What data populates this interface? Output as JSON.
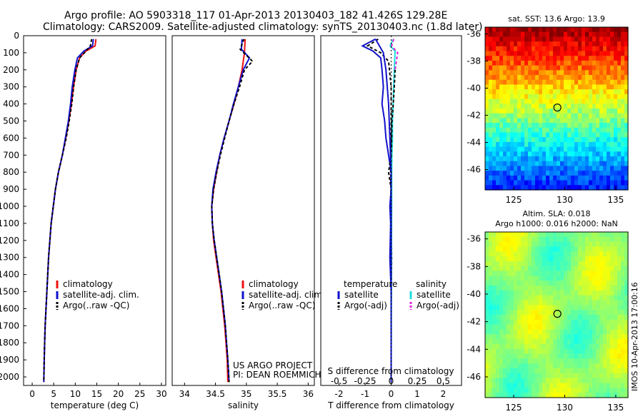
{
  "header": {
    "line1": "Argo profile: AO 5903318_117 01-Apr-2013 20130403_182 41.426S 129.28E",
    "line2": "Climatology: CARS2009. Satellite-adjusted climatology: synTS_20130403.nc (1.8d later)"
  },
  "side_label": "IMOS 10-Apr-2013 17:00:16",
  "colors": {
    "climatology": "#ee1111",
    "satellite": "#1111cc",
    "argo": "#000000",
    "sal_satellite": "#22dddd",
    "sal_argo": "#dd22dd"
  },
  "chart_data": [
    {
      "type": "line",
      "xlabel": "temperature (deg C)",
      "xlim": [
        -2,
        31
      ],
      "xticks": [
        "0",
        "5",
        "10",
        "15",
        "20",
        "25",
        "30"
      ],
      "ylim": [
        0,
        2050
      ],
      "yticks": [
        "0",
        "100",
        "200",
        "300",
        "400",
        "500",
        "600",
        "700",
        "800",
        "900",
        "1000",
        "1100",
        "1200",
        "1300",
        "1400",
        "1500",
        "1600",
        "1700",
        "1800",
        "1900",
        "2000"
      ],
      "legend": [
        "climatology",
        "satellite-adj. clim.",
        "Argo(..raw -QC)"
      ],
      "series": [
        {
          "name": "climatology",
          "color": "#ee1111",
          "dash": "",
          "points": [
            [
              14.8,
              20
            ],
            [
              14.6,
              60
            ],
            [
              12.5,
              90
            ],
            [
              11,
              130
            ],
            [
              10.2,
              200
            ],
            [
              9.6,
              300
            ],
            [
              9.1,
              400
            ],
            [
              8.5,
              500
            ],
            [
              7.8,
              600
            ],
            [
              7,
              700
            ],
            [
              6.1,
              800
            ],
            [
              5.4,
              900
            ],
            [
              4.9,
              1000
            ],
            [
              4.4,
              1100
            ],
            [
              4.1,
              1200
            ],
            [
              3.8,
              1300
            ],
            [
              3.6,
              1400
            ],
            [
              3.4,
              1500
            ],
            [
              3.2,
              1600
            ],
            [
              3,
              1700
            ],
            [
              2.9,
              1800
            ],
            [
              2.8,
              1900
            ],
            [
              2.7,
              2030
            ]
          ]
        },
        {
          "name": "satellite-adj. clim.",
          "color": "#1111cc",
          "dash": "",
          "points": [
            [
              14.2,
              20
            ],
            [
              14,
              60
            ],
            [
              12,
              90
            ],
            [
              10.5,
              130
            ],
            [
              9.9,
              200
            ],
            [
              9.3,
              300
            ],
            [
              8.9,
              400
            ],
            [
              8.4,
              500
            ],
            [
              7.7,
              600
            ],
            [
              7,
              700
            ],
            [
              6.1,
              800
            ],
            [
              5.4,
              900
            ],
            [
              4.9,
              1000
            ],
            [
              4.4,
              1100
            ],
            [
              4.1,
              1200
            ],
            [
              3.8,
              1300
            ],
            [
              3.6,
              1400
            ],
            [
              3.4,
              1500
            ],
            [
              3.2,
              1600
            ],
            [
              3,
              1700
            ],
            [
              2.9,
              1800
            ],
            [
              2.8,
              1900
            ],
            [
              2.7,
              2030
            ]
          ]
        },
        {
          "name": "Argo(..raw -QC)",
          "color": "#000000",
          "dash": "4,3",
          "points": [
            [
              13.8,
              20
            ],
            [
              13.5,
              60
            ],
            [
              12.5,
              90
            ],
            [
              11,
              130
            ],
            [
              10.2,
              200
            ],
            [
              9.6,
              300
            ],
            [
              9.2,
              400
            ],
            [
              8.6,
              500
            ],
            [
              7.9,
              600
            ],
            [
              7,
              700
            ],
            [
              6.1,
              800
            ],
            [
              5.4,
              900
            ],
            [
              4.9,
              1000
            ],
            [
              4.4,
              1100
            ],
            [
              4.1,
              1200
            ],
            [
              3.8,
              1300
            ],
            [
              3.6,
              1400
            ],
            [
              3.4,
              1500
            ],
            [
              3.2,
              1600
            ],
            [
              3,
              1700
            ],
            [
              2.9,
              1800
            ],
            [
              2.8,
              1900
            ],
            [
              2.7,
              2030
            ]
          ]
        }
      ]
    },
    {
      "type": "line",
      "xlabel": "salinity",
      "xlim": [
        33.8,
        36.1
      ],
      "xticks": [
        "34",
        "34.5",
        "35",
        "35.5",
        "36"
      ],
      "ylim": [
        0,
        2050
      ],
      "legend": [
        "climatology",
        "satellite-adj. clim.",
        "Argo(..raw -QC)"
      ],
      "note_lines": [
        "US ARGO PROJECT",
        "PI: DEAN ROEMMICH"
      ],
      "series": [
        {
          "name": "climatology",
          "color": "#ee1111",
          "dash": "",
          "points": [
            [
              34.98,
              20
            ],
            [
              34.97,
              100
            ],
            [
              34.93,
              200
            ],
            [
              34.87,
              300
            ],
            [
              34.8,
              400
            ],
            [
              34.72,
              500
            ],
            [
              34.64,
              600
            ],
            [
              34.57,
              700
            ],
            [
              34.52,
              800
            ],
            [
              34.47,
              900
            ],
            [
              34.44,
              1000
            ],
            [
              34.45,
              1100
            ],
            [
              34.47,
              1200
            ],
            [
              34.51,
              1300
            ],
            [
              34.55,
              1400
            ],
            [
              34.59,
              1500
            ],
            [
              34.62,
              1600
            ],
            [
              34.65,
              1700
            ],
            [
              34.67,
              1800
            ],
            [
              34.69,
              1900
            ],
            [
              34.7,
              2030
            ]
          ]
        },
        {
          "name": "satellite-adj. clim.",
          "color": "#1111cc",
          "dash": "",
          "points": [
            [
              34.93,
              20
            ],
            [
              34.92,
              80
            ],
            [
              35.05,
              130
            ],
            [
              34.95,
              200
            ],
            [
              34.87,
              300
            ],
            [
              34.79,
              400
            ],
            [
              34.72,
              500
            ],
            [
              34.64,
              600
            ],
            [
              34.57,
              700
            ],
            [
              34.51,
              800
            ],
            [
              34.46,
              900
            ],
            [
              34.44,
              1000
            ],
            [
              34.45,
              1100
            ],
            [
              34.48,
              1200
            ],
            [
              34.52,
              1300
            ],
            [
              34.56,
              1400
            ],
            [
              34.6,
              1500
            ],
            [
              34.63,
              1600
            ],
            [
              34.66,
              1700
            ],
            [
              34.68,
              1800
            ],
            [
              34.7,
              1900
            ],
            [
              34.72,
              2030
            ]
          ]
        },
        {
          "name": "Argo(..raw -QC)",
          "color": "#000000",
          "dash": "4,3",
          "points": [
            [
              34.96,
              20
            ],
            [
              34.9,
              80
            ],
            [
              35.1,
              150
            ],
            [
              34.97,
              200
            ],
            [
              34.89,
              300
            ],
            [
              34.8,
              400
            ],
            [
              34.72,
              500
            ],
            [
              34.65,
              600
            ],
            [
              34.58,
              700
            ],
            [
              34.52,
              800
            ],
            [
              34.47,
              900
            ],
            [
              34.44,
              1000
            ],
            [
              34.45,
              1100
            ],
            [
              34.48,
              1200
            ],
            [
              34.52,
              1300
            ],
            [
              34.56,
              1400
            ],
            [
              34.6,
              1500
            ],
            [
              34.63,
              1600
            ],
            [
              34.66,
              1700
            ],
            [
              34.68,
              1800
            ],
            [
              34.7,
              1900
            ],
            [
              34.72,
              2030
            ]
          ]
        }
      ]
    },
    {
      "type": "line",
      "xlabel": "T difference from climatology",
      "top_label": "S difference from climatology",
      "xlim": [
        -2.7,
        2.7
      ],
      "xticks": [
        "-2",
        "-1",
        "0",
        "1",
        "2"
      ],
      "sticks": [
        "-0.5",
        "-0.25",
        "0",
        "0.25",
        "0.5"
      ],
      "ylim": [
        0,
        2050
      ],
      "legend_groups": [
        {
          "title": "temperature",
          "items": [
            "satellite",
            "Argo(-adj)"
          ]
        },
        {
          "title": "salinity",
          "items": [
            "satellite",
            "Argo(-adj)"
          ]
        }
      ],
      "series": [
        {
          "name": "T satellite",
          "color": "#1111cc",
          "dash": "",
          "points": [
            [
              -0.6,
              20
            ],
            [
              -1.1,
              60
            ],
            [
              -0.7,
              90
            ],
            [
              -0.4,
              130
            ],
            [
              -0.35,
              200
            ],
            [
              -0.3,
              300
            ],
            [
              -0.35,
              400
            ],
            [
              -0.25,
              500
            ],
            [
              -0.2,
              600
            ],
            [
              -0.1,
              700
            ],
            [
              0,
              800
            ],
            [
              0,
              900
            ],
            [
              -0.05,
              1000
            ],
            [
              -0.02,
              1100
            ],
            [
              -0.05,
              1300
            ],
            [
              0,
              1500
            ],
            [
              0,
              1800
            ],
            [
              0,
              2030
            ]
          ]
        },
        {
          "name": "T Argo(-adj)",
          "color": "#000000",
          "dash": "4,3",
          "points": [
            [
              -0.5,
              20
            ],
            [
              -0.9,
              60
            ],
            [
              -0.4,
              100
            ],
            [
              -0.1,
              150
            ],
            [
              0,
              300
            ],
            [
              0,
              500
            ],
            [
              0,
              700
            ],
            [
              -0.1,
              800
            ],
            [
              0,
              900
            ],
            [
              0,
              1000
            ],
            [
              0.02,
              1300
            ],
            [
              0,
              1600
            ],
            [
              0,
              2030
            ]
          ]
        },
        {
          "name": "S satellite",
          "color": "#22dddd",
          "dash": "",
          "points": [
            [
              0.08,
              20
            ],
            [
              -0.04,
              60
            ],
            [
              0.15,
              90
            ],
            [
              0.12,
              200
            ],
            [
              0.1,
              300
            ],
            [
              0.08,
              400
            ],
            [
              0.05,
              500
            ],
            [
              0.05,
              600
            ],
            [
              0.03,
              700
            ],
            [
              0.02,
              800
            ],
            [
              0.02,
              1000
            ],
            [
              0.01,
              1300
            ],
            [
              0,
              2030
            ]
          ]
        },
        {
          "name": "S Argo(-adj)",
          "color": "#dd22dd",
          "dash": "4,3",
          "points": [
            [
              0.1,
              20
            ],
            [
              0.02,
              60
            ],
            [
              0.25,
              100
            ],
            [
              0.2,
              150
            ],
            [
              0.15,
              200
            ]
          ]
        },
        {
          "name": "S Argo black",
          "color": "#000000",
          "dash": "4,3",
          "points": [
            [
              0.15,
              200
            ],
            [
              0.12,
              300
            ],
            [
              0.08,
              400
            ],
            [
              0.03,
              500
            ],
            [
              0.02,
              600
            ],
            [
              0,
              700
            ],
            [
              -0.02,
              800
            ],
            [
              0,
              1000
            ],
            [
              0,
              1300
            ],
            [
              0,
              2030
            ]
          ]
        },
        {
          "name": "S Argo blue",
          "color": "#1111cc",
          "dash": "",
          "points": [
            [
              -0.6,
              20
            ],
            [
              -0.3,
              100
            ],
            [
              -0.2,
              200
            ],
            [
              -0.1,
              400
            ],
            [
              0,
              800
            ],
            [
              0,
              2030
            ]
          ]
        }
      ]
    },
    {
      "type": "heatmap",
      "title": "sat. SST: 13.6 Argo: 13.9",
      "xlim": [
        122.2,
        136.2
      ],
      "ylim": [
        -47.5,
        -35.5
      ],
      "xticks": [
        "125",
        "130",
        "135"
      ],
      "yticks": [
        "-36",
        "-38",
        "-40",
        "-42",
        "-44",
        "-46"
      ],
      "marker": [
        129.28,
        -41.43
      ]
    },
    {
      "type": "heatmap",
      "title_lines": [
        "Altim. SLA: 0.018",
        "Argo h1000: 0.016 h2000: NaN"
      ],
      "xlim": [
        122.2,
        136.2
      ],
      "ylim": [
        -47.5,
        -35.5
      ],
      "xticks": [
        "125",
        "130",
        "135"
      ],
      "yticks": [
        "-36",
        "-38",
        "-40",
        "-42",
        "-44",
        "-46"
      ],
      "marker": [
        129.28,
        -41.43
      ]
    }
  ]
}
